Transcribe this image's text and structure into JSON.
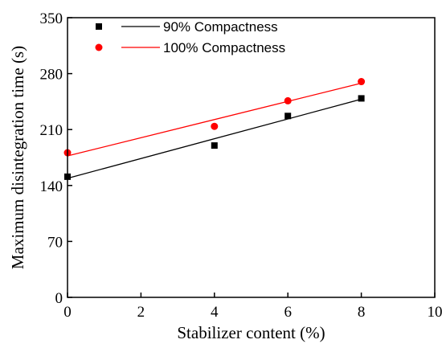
{
  "chart_data": {
    "type": "scatter",
    "xlabel": "Stabilizer content (%)",
    "ylabel": "Maximum disintegration time (s)",
    "xlim": [
      0,
      10
    ],
    "ylim": [
      0,
      350
    ],
    "xticks": [
      0,
      2,
      4,
      6,
      8,
      10
    ],
    "yticks": [
      0,
      70,
      140,
      210,
      280,
      350
    ],
    "grid": false,
    "legend_position": "top",
    "series": [
      {
        "name": "90% Compactness",
        "color": "#000000",
        "marker": "square",
        "x": [
          0,
          4,
          6,
          8
        ],
        "y": [
          151,
          190,
          227,
          249
        ],
        "fit": [
          [
            0,
            149
          ],
          [
            8,
            248
          ]
        ]
      },
      {
        "name": "100% Compactness",
        "color": "#ff0000",
        "marker": "circle",
        "x": [
          0,
          4,
          6,
          8
        ],
        "y": [
          181,
          214,
          246,
          270
        ],
        "fit": [
          [
            0,
            177
          ],
          [
            8,
            268
          ]
        ]
      }
    ]
  }
}
